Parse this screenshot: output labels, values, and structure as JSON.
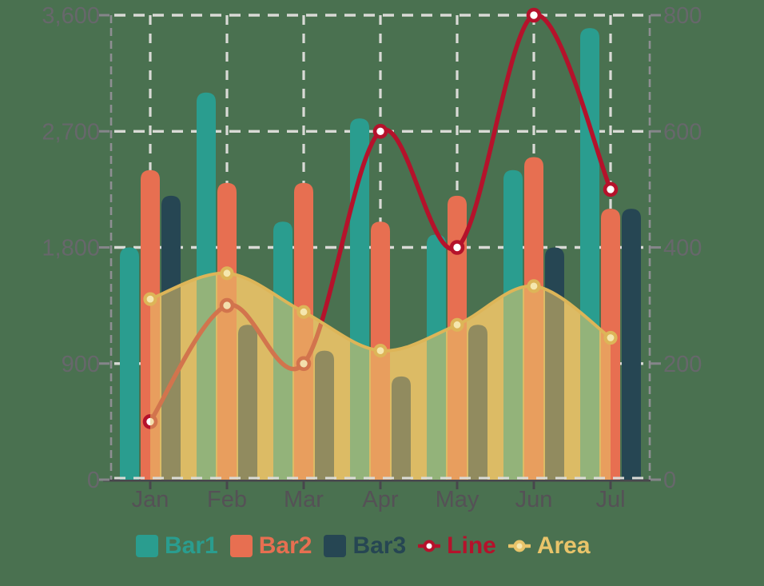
{
  "background_color": "#4a7150",
  "chart_data": {
    "type": "mixed",
    "title": "",
    "categories": [
      "Jan",
      "Feb",
      "Mar",
      "Apr",
      "May",
      "Jun",
      "Jul"
    ],
    "series": [
      {
        "name": "Bar1",
        "type": "bar",
        "axis": "left",
        "color": "#2a9d8f",
        "values": [
          1800,
          3000,
          2000,
          2800,
          1900,
          2400,
          3500
        ]
      },
      {
        "name": "Bar2",
        "type": "bar",
        "axis": "left",
        "color": "#e76f51",
        "values": [
          2400,
          2300,
          2300,
          2000,
          2200,
          2500,
          2100
        ]
      },
      {
        "name": "Bar3",
        "type": "bar",
        "axis": "left",
        "color": "#264653",
        "values": [
          2200,
          1200,
          1000,
          800,
          1200,
          1800,
          2100
        ]
      },
      {
        "name": "Line",
        "type": "line",
        "axis": "right",
        "color": "#b5122b",
        "marker_fill": "#ffffff",
        "values": [
          100,
          300,
          200,
          600,
          400,
          800,
          500
        ]
      },
      {
        "name": "Area",
        "type": "area",
        "axis": "left",
        "color": "#e9c46a",
        "stroke": "#ddb558",
        "marker_fill": "#f5e7ae",
        "fill_opacity": 0.55,
        "underlay_fill": "#cdaf60",
        "values": [
          1400,
          1600,
          1300,
          1000,
          1200,
          1500,
          1100
        ]
      }
    ],
    "left_axis": {
      "min": 0,
      "max": 3600,
      "tick_values": [
        0,
        900,
        1800,
        2700,
        3600
      ],
      "tick_labels": [
        "0",
        "900",
        "1,800",
        "2,700",
        "3,600"
      ]
    },
    "right_axis": {
      "min": 0,
      "max": 800,
      "tick_values": [
        0,
        200,
        400,
        600,
        800
      ],
      "tick_labels": [
        "0",
        "200",
        "400",
        "600",
        "800"
      ]
    },
    "grid": {
      "dashed": true,
      "color": "#d9dad6",
      "vertical_lines": true
    },
    "axis_line_color": "#8e8e92",
    "bottom_axis_color": "#48464c",
    "legend_position": "bottom",
    "legend": [
      "Bar1",
      "Bar2",
      "Bar3",
      "Line",
      "Area"
    ],
    "smooth": true
  }
}
